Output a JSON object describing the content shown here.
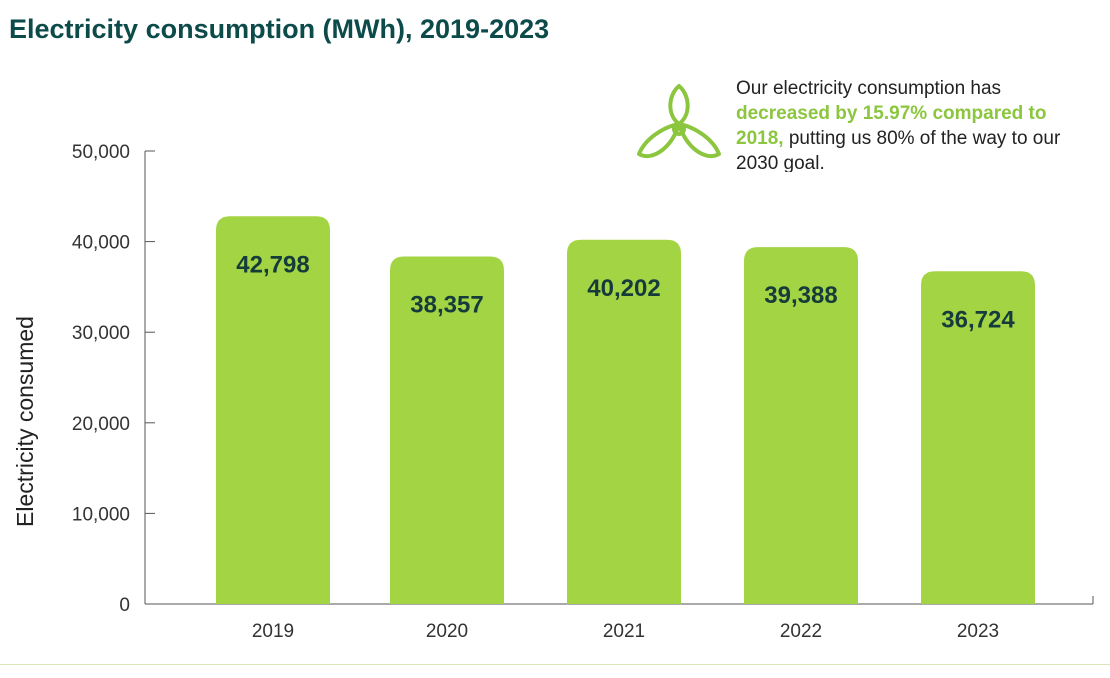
{
  "colors": {
    "bar": "#a3d444",
    "title": "#0d4a4a",
    "accent": "#8cc63f",
    "axis": "#555555"
  },
  "callout": {
    "line1": "Our electricity consumption has ",
    "highlight": "decreased by 15.97% compared to 2018,",
    "line2": " putting us 80% of the way to our 2030 goal.",
    "icon": "fan-icon"
  },
  "chart_data": {
    "type": "bar",
    "title": "Electricity consumption (MWh), 2019-2023",
    "xlabel": "",
    "ylabel": "Electricity consumed",
    "categories": [
      "2019",
      "2020",
      "2021",
      "2022",
      "2023"
    ],
    "values": [
      42798,
      38357,
      40202,
      39388,
      36724
    ],
    "value_labels": [
      "42,798",
      "38,357",
      "40,202",
      "39,388",
      "36,724"
    ],
    "ylim": [
      0,
      50000
    ],
    "yticks": [
      0,
      10000,
      20000,
      30000,
      40000,
      50000
    ],
    "ytick_labels": [
      "0",
      "10,000",
      "20,000",
      "30,000",
      "40,000",
      "50,000"
    ],
    "grid": false
  }
}
